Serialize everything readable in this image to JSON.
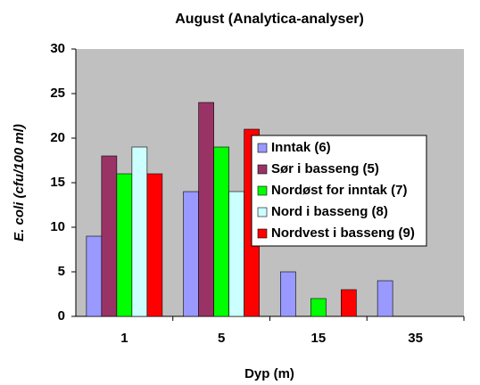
{
  "chart_data": {
    "type": "bar",
    "title": "August (Analytica-analyser)",
    "x_label": "Dyp (m)",
    "y_label": "E. coli (cfu/100 ml)",
    "categories": [
      "1",
      "5",
      "15",
      "35"
    ],
    "series": [
      {
        "name": "Inntak (6)",
        "color": "#9999ff",
        "values": [
          9,
          14,
          5,
          4
        ]
      },
      {
        "name": "Sør i basseng (5)",
        "color": "#993366",
        "values": [
          18,
          24,
          null,
          null
        ]
      },
      {
        "name": "Nordøst for inntak (7)",
        "color": "#00ff00",
        "values": [
          16,
          19,
          2,
          null
        ]
      },
      {
        "name": "Nord i basseng (8)",
        "color": "#ccffff",
        "values": [
          19,
          14,
          null,
          null
        ]
      },
      {
        "name": "Nordvest i basseng (9)",
        "color": "#ff0000",
        "values": [
          16,
          21,
          3,
          null
        ]
      }
    ],
    "ylim": [
      0,
      30
    ],
    "yticks": [
      0,
      5,
      10,
      15,
      20,
      25,
      30
    ],
    "grid": false,
    "legend": "right"
  }
}
